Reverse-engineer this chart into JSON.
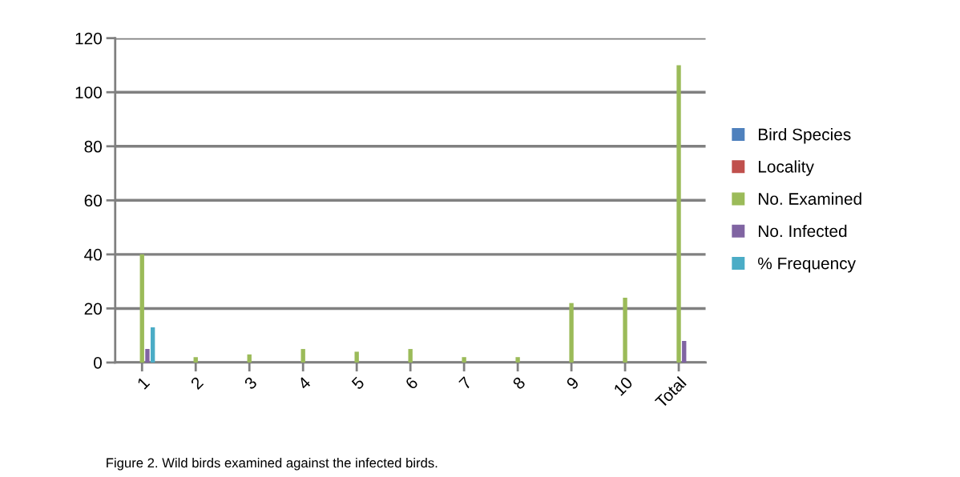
{
  "chart_data": {
    "type": "bar",
    "categories": [
      "1",
      "2",
      "3",
      "4",
      "5",
      "6",
      "7",
      "8",
      "9",
      "10",
      "Total"
    ],
    "series": [
      {
        "name": "Bird Species",
        "color": "#4f81bd",
        "values": [
          0,
          0,
          0,
          0,
          0,
          0,
          0,
          0,
          0,
          0,
          0
        ]
      },
      {
        "name": "Locality",
        "color": "#c0504d",
        "values": [
          0,
          0,
          0,
          0,
          0,
          0,
          0,
          0,
          0,
          0,
          0
        ]
      },
      {
        "name": "No. Examined",
        "color": "#9bbb59",
        "values": [
          40,
          2,
          3,
          5,
          4,
          5,
          2,
          2,
          22,
          24,
          110
        ]
      },
      {
        "name": "No. Infected",
        "color": "#8064a2",
        "values": [
          5,
          0,
          0,
          0,
          0,
          0,
          0,
          0,
          0,
          0,
          8
        ]
      },
      {
        "name": "% Frequency",
        "color": "#4bacc6",
        "values": [
          13,
          0,
          0,
          0,
          0,
          0,
          0,
          0,
          0,
          0,
          0
        ]
      }
    ],
    "ylim": [
      0,
      120
    ],
    "yticks": [
      0,
      20,
      40,
      60,
      80,
      100,
      120
    ],
    "grid": "y",
    "legend": "right",
    "annotations": [
      "Figure 2. Wild birds examined against the infected birds."
    ]
  }
}
